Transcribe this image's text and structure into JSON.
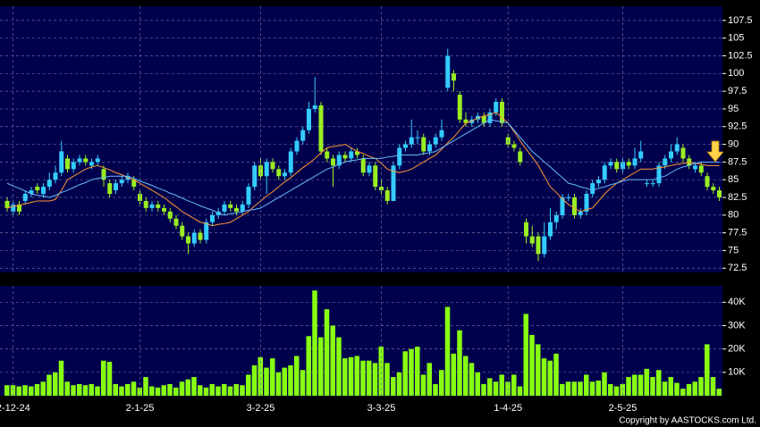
{
  "chart_data": [
    {
      "type": "candlestick",
      "up_color": "#33ccff",
      "down_color": "#99ee22",
      "grid": true,
      "ylim": [
        71.9,
        109.5
      ],
      "yticks": [
        72.5,
        75,
        77.5,
        80,
        82.5,
        85,
        87.5,
        90,
        92.5,
        95,
        97.5,
        100,
        102.5,
        105,
        107.5
      ],
      "ohlc": [
        [
          82,
          82.5,
          80.5,
          81
        ],
        [
          80.5,
          82,
          80,
          81.5
        ],
        [
          81.5,
          82,
          80,
          80.5
        ],
        [
          82,
          83.5,
          81.5,
          83
        ],
        [
          83,
          84,
          82.5,
          83.5
        ],
        [
          84,
          84.5,
          83,
          83.5
        ],
        [
          83,
          84.5,
          82.5,
          84
        ],
        [
          84,
          86,
          83.5,
          85
        ],
        [
          85,
          87,
          84.5,
          86
        ],
        [
          86,
          90.5,
          85.5,
          89
        ],
        [
          88,
          88.5,
          86,
          86.5
        ],
        [
          86.5,
          88,
          86,
          87.5
        ],
        [
          87.5,
          88.5,
          87,
          88
        ],
        [
          88,
          88.5,
          87,
          87.5
        ],
        [
          87,
          88,
          86.5,
          87.5
        ],
        [
          87.5,
          88.5,
          87,
          88
        ],
        [
          86.5,
          87,
          84,
          85
        ],
        [
          84.5,
          85,
          82.5,
          83
        ],
        [
          83.5,
          85,
          83,
          84.5
        ],
        [
          84.5,
          85.5,
          84,
          85
        ],
        [
          85,
          86,
          84.5,
          85.5
        ],
        [
          85,
          85.5,
          83.5,
          84
        ],
        [
          83,
          83.5,
          81.5,
          82
        ],
        [
          82,
          82.5,
          80.5,
          81
        ],
        [
          81,
          82,
          80.5,
          81.5
        ],
        [
          81.5,
          82,
          80.5,
          81
        ],
        [
          81,
          81.5,
          80,
          80.5
        ],
        [
          80.5,
          81,
          79,
          79.5
        ],
        [
          79.5,
          80,
          78,
          78.5
        ],
        [
          78.5,
          79,
          76.5,
          77
        ],
        [
          77,
          77.5,
          74.5,
          76
        ],
        [
          76,
          78,
          75.5,
          77.5
        ],
        [
          77.5,
          78,
          76,
          76.5
        ],
        [
          76.5,
          79.5,
          76,
          79
        ],
        [
          79,
          80.5,
          78.5,
          80
        ],
        [
          80,
          81,
          79.5,
          80.5
        ],
        [
          80.5,
          82,
          80,
          81.5
        ],
        [
          81.5,
          82,
          80.5,
          81
        ],
        [
          81,
          81.5,
          80,
          80.5
        ],
        [
          80.5,
          82,
          80,
          81.5
        ],
        [
          81.5,
          84.5,
          81,
          84
        ],
        [
          84,
          87.5,
          83.5,
          87
        ],
        [
          87,
          88,
          85,
          85.5
        ],
        [
          85.5,
          88,
          83,
          87.5
        ],
        [
          87.5,
          88,
          86,
          86.5
        ],
        [
          86.5,
          87,
          85,
          85.5
        ],
        [
          85.5,
          86.5,
          85,
          86
        ],
        [
          86,
          89.5,
          85.5,
          89
        ],
        [
          89,
          91,
          88.5,
          90.5
        ],
        [
          90.5,
          92.5,
          90,
          92
        ],
        [
          92,
          96,
          91.5,
          95
        ],
        [
          95,
          99.5,
          94.5,
          95.5
        ],
        [
          95.5,
          96,
          88.5,
          89
        ],
        [
          89,
          89.5,
          87.5,
          88
        ],
        [
          88,
          88.5,
          84,
          87
        ],
        [
          87,
          89,
          86.5,
          88.5
        ],
        [
          88.5,
          89,
          87.5,
          88
        ],
        [
          88,
          89.5,
          87.5,
          89
        ],
        [
          89,
          89.5,
          88,
          88.5
        ],
        [
          88,
          88.5,
          85.5,
          86
        ],
        [
          86,
          87.5,
          85.5,
          87
        ],
        [
          87,
          87.5,
          83.5,
          84
        ],
        [
          84,
          85,
          83,
          83.5
        ],
        [
          83.5,
          84,
          81.5,
          82
        ],
        [
          82,
          87.5,
          82,
          87
        ],
        [
          87,
          90,
          86.5,
          89.5
        ],
        [
          89.5,
          90.5,
          89,
          90
        ],
        [
          90,
          93.5,
          89.5,
          91
        ],
        [
          91,
          92,
          90,
          91
        ],
        [
          91,
          91.5,
          88.5,
          89
        ],
        [
          89,
          90.5,
          88.5,
          90
        ],
        [
          90,
          91.5,
          89.5,
          91
        ],
        [
          91,
          93.5,
          90.5,
          92
        ],
        [
          98,
          103.5,
          97.5,
          102.5
        ],
        [
          100,
          100.5,
          97.5,
          99
        ],
        [
          97,
          97.5,
          93,
          93.5
        ],
        [
          93.5,
          94.5,
          92.5,
          93
        ],
        [
          93,
          94,
          92.5,
          93.5
        ],
        [
          93.5,
          94.5,
          93,
          94
        ],
        [
          94,
          94.5,
          92.5,
          93
        ],
        [
          93,
          95,
          92.5,
          94.5
        ],
        [
          94.5,
          96.5,
          94,
          96
        ],
        [
          96,
          96.5,
          92.5,
          93
        ],
        [
          91,
          91.5,
          89.5,
          90
        ],
        [
          90,
          90.5,
          89,
          89.5
        ],
        [
          89,
          89.5,
          87,
          87.5
        ],
        [
          79,
          79.5,
          76,
          77
        ],
        [
          77,
          78.5,
          75.5,
          76
        ],
        [
          77,
          77.5,
          73.5,
          74.5
        ],
        [
          74.5,
          79,
          74,
          77
        ],
        [
          77,
          81,
          76.5,
          79
        ],
        [
          79,
          80.5,
          78,
          80
        ],
        [
          80,
          83,
          79.5,
          82.5
        ],
        [
          82.5,
          83,
          82,
          82.5
        ],
        [
          82.5,
          83,
          79.5,
          80
        ],
        [
          80,
          81,
          79.5,
          80.5
        ],
        [
          80.5,
          83.5,
          80,
          83
        ],
        [
          83,
          85,
          82.5,
          84.5
        ],
        [
          84.5,
          85.5,
          84,
          85
        ],
        [
          85,
          87.5,
          84.5,
          87
        ],
        [
          87,
          88,
          86.5,
          87.5
        ],
        [
          87.5,
          88,
          86,
          86.5
        ],
        [
          86.5,
          88,
          86,
          87.5
        ],
        [
          87.5,
          88,
          86.5,
          87
        ],
        [
          87,
          89.5,
          86.5,
          88
        ],
        [
          88,
          90.5,
          87.5,
          89
        ],
        [
          84.5,
          85,
          84,
          84.5
        ],
        [
          84.5,
          85,
          84,
          84.5
        ],
        [
          84.5,
          87.5,
          84,
          87
        ],
        [
          87,
          88.5,
          86.5,
          88
        ],
        [
          88,
          90,
          87.5,
          89
        ],
        [
          89,
          91,
          88.5,
          90
        ],
        [
          89.5,
          90,
          87.5,
          88
        ],
        [
          88,
          88.5,
          86.5,
          87
        ],
        [
          86.5,
          87.5,
          86,
          87
        ],
        [
          87,
          87.5,
          85.5,
          86
        ],
        [
          85.5,
          86,
          83.5,
          84
        ],
        [
          84,
          84.5,
          83,
          83.5
        ],
        [
          83.5,
          84,
          82,
          82.5
        ]
      ],
      "series": [
        {
          "color": "#ff9933",
          "values": [
            81,
            81.2,
            81.4,
            81.6,
            81.8,
            82,
            82,
            82,
            82.2,
            83.5,
            85,
            85.5,
            86,
            86.5,
            86.8,
            87,
            86.7,
            86.4,
            86,
            85.7,
            85.3,
            85,
            84.5,
            84,
            83.5,
            83,
            82.5,
            81.8,
            81.2,
            80.5,
            80,
            79.5,
            79,
            78.8,
            78.5,
            78.7,
            78.8,
            79,
            79.5,
            80,
            80.5,
            81.3,
            82,
            82.7,
            83.3,
            84,
            84.7,
            85.3,
            86,
            86.7,
            87.3,
            88,
            88.8,
            89.5,
            89.7,
            89.8,
            90,
            89.5,
            89,
            88.7,
            88.3,
            88,
            87.3,
            86.5,
            86.2,
            86,
            86.2,
            86.5,
            87,
            87.5,
            88,
            88.5,
            89.3,
            90.2,
            91,
            92,
            93,
            93.3,
            93.7,
            94,
            94.2,
            94.5,
            93.8,
            93,
            91.8,
            90.5,
            89.3,
            88.2,
            87,
            85.5,
            84,
            83.2,
            82.3,
            81.5,
            81,
            80.5,
            80.8,
            81,
            82,
            83,
            83.8,
            84.5,
            85,
            85.5,
            86,
            86.5,
            86.5,
            86.5,
            86.7,
            86.8,
            87,
            87.2,
            87.3,
            87.5,
            87.3,
            87.2,
            87,
            87,
            87
          ]
        },
        {
          "color": "#66bbff",
          "values": [
            84.5,
            84.1,
            83.8,
            83.4,
            83,
            82.8,
            82.7,
            82.5,
            82.8,
            83.2,
            83.5,
            83.9,
            84.3,
            84.6,
            85,
            85.2,
            85.3,
            85.5,
            85.5,
            85.5,
            85.5,
            85.2,
            84.8,
            84.5,
            84.2,
            83.8,
            83.5,
            83.1,
            82.8,
            82.4,
            82,
            81.7,
            81.3,
            81,
            80.7,
            80.3,
            80,
            80.2,
            80.3,
            80.5,
            80.7,
            80.8,
            81,
            81.5,
            82,
            82.5,
            83,
            83.5,
            84,
            84.5,
            85,
            85.5,
            86,
            86.5,
            86.8,
            87.2,
            87.5,
            87.7,
            87.8,
            88,
            88,
            88,
            88,
            88.2,
            88.3,
            88.5,
            88.5,
            88.5,
            88.5,
            88.7,
            88.8,
            89,
            89.5,
            90,
            90.5,
            91,
            91.5,
            92,
            92.5,
            93,
            93.5,
            93.3,
            93.2,
            93,
            92,
            91,
            90,
            89,
            88.3,
            87.5,
            86.8,
            86,
            85.3,
            84.5,
            84.3,
            84,
            83.8,
            83.5,
            83.8,
            84,
            84.3,
            84.5,
            84.8,
            85,
            85,
            85,
            85,
            85,
            85.3,
            85.5,
            86,
            86.5,
            86.8,
            87,
            87.3,
            87.5,
            87.5,
            87.5,
            87.5
          ]
        }
      ]
    },
    {
      "type": "bar",
      "color": "#88ff11",
      "grid": true,
      "ylim": [
        0,
        47000
      ],
      "yticks": [
        {
          "value": 10000,
          "label": "10K"
        },
        {
          "value": 20000,
          "label": "20K"
        },
        {
          "value": 30000,
          "label": "30K"
        },
        {
          "value": 40000,
          "label": "40K"
        }
      ],
      "categories": [
        null,
        "2-12-24",
        null,
        null,
        null,
        null,
        null,
        null,
        null,
        null,
        null,
        null,
        null,
        null,
        null,
        null,
        null,
        null,
        null,
        null,
        null,
        null,
        "2-1-25",
        null,
        null,
        null,
        null,
        null,
        null,
        null,
        null,
        null,
        null,
        null,
        null,
        null,
        null,
        null,
        null,
        null,
        null,
        null,
        "3-2-25",
        null,
        null,
        null,
        null,
        null,
        null,
        null,
        null,
        null,
        null,
        null,
        null,
        null,
        null,
        null,
        null,
        null,
        null,
        null,
        "3-3-25",
        null,
        null,
        null,
        null,
        null,
        null,
        null,
        null,
        null,
        null,
        null,
        null,
        null,
        null,
        null,
        null,
        null,
        null,
        null,
        null,
        "1-4-25",
        null,
        null,
        null,
        null,
        null,
        null,
        null,
        null,
        null,
        null,
        null,
        null,
        null,
        null,
        null,
        null,
        null,
        null,
        "2-5-25",
        null,
        null,
        null,
        null,
        null,
        null,
        null,
        null,
        null,
        null,
        null,
        null,
        null,
        null,
        null,
        null
      ],
      "values": [
        4500,
        4500,
        4000,
        4500,
        4000,
        5000,
        6000,
        9000,
        10000,
        15000,
        6000,
        4500,
        5000,
        4500,
        5000,
        4000,
        15000,
        14500,
        5000,
        4000,
        5000,
        6000,
        3500,
        8000,
        4000,
        3500,
        4500,
        5000,
        3500,
        6000,
        7000,
        8000,
        4500,
        3500,
        5000,
        4000,
        5000,
        4000,
        5000,
        4500,
        9000,
        13000,
        16500,
        12000,
        16000,
        10000,
        12000,
        13000,
        17000,
        11000,
        25500,
        45000,
        25000,
        37000,
        30000,
        25000,
        16000,
        16500,
        17000,
        15000,
        15000,
        14000,
        21000,
        14000,
        8000,
        10000,
        19000,
        20000,
        21000,
        9000,
        14000,
        5000,
        11000,
        38000,
        18000,
        28000,
        17000,
        14000,
        10000,
        5000,
        7500,
        6000,
        9000,
        6000,
        9000,
        4000,
        35000,
        26000,
        22000,
        16000,
        15000,
        18000,
        5000,
        6000,
        6000,
        6000,
        9000,
        6000,
        6500,
        10000,
        5000,
        4000,
        5000,
        8000,
        9000,
        9000,
        11500,
        8000,
        11000,
        6000,
        8000,
        5500,
        3000,
        5000,
        6000,
        8000,
        22000,
        8000,
        3000
      ]
    }
  ],
  "copyright": "Copyright by AASTOCKS.com Ltd."
}
